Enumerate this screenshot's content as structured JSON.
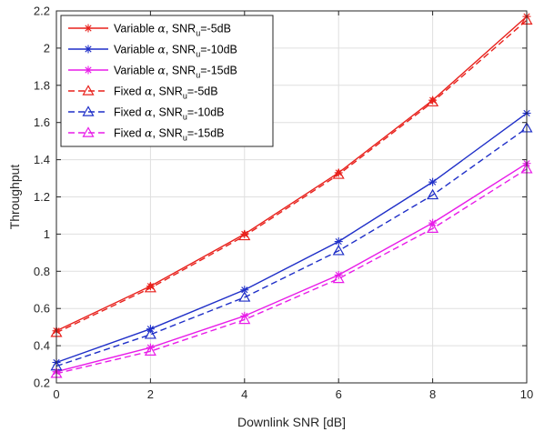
{
  "chart_data": {
    "type": "line",
    "title": "",
    "xlabel": "Downlink SNR [dB]",
    "ylabel": "Throughput",
    "xlim": [
      0,
      10
    ],
    "ylim": [
      0.2,
      2.2
    ],
    "xticks": [
      0,
      2,
      4,
      6,
      8,
      10
    ],
    "yticks": [
      0.2,
      0.4,
      0.6,
      0.8,
      1,
      1.2,
      1.4,
      1.6,
      1.8,
      2,
      2.2
    ],
    "xtick_labels": [
      "0",
      "2",
      "4",
      "6",
      "8",
      "10"
    ],
    "ytick_labels": [
      "0.2",
      "0.4",
      "0.6",
      "0.8",
      "1",
      "1.2",
      "1.4",
      "1.6",
      "1.8",
      "2",
      "2.2"
    ],
    "grid": true,
    "legend_position": "top-left",
    "x": [
      0,
      2,
      4,
      6,
      8,
      10
    ],
    "series": [
      {
        "legend": {
          "prefix": "Variable ",
          "greek": "α",
          "mid": ", SNR",
          "sub": "u",
          "suffix": "=-5dB"
        },
        "color": "#e8211c",
        "dash": "solid",
        "marker": "asterisk",
        "values": [
          0.48,
          0.72,
          1.0,
          1.33,
          1.72,
          2.17
        ]
      },
      {
        "legend": {
          "prefix": "Variable ",
          "greek": "α",
          "mid": ", SNR",
          "sub": "u",
          "suffix": "=-10dB"
        },
        "color": "#1f2fc8",
        "dash": "solid",
        "marker": "asterisk",
        "values": [
          0.31,
          0.49,
          0.7,
          0.96,
          1.28,
          1.65
        ]
      },
      {
        "legend": {
          "prefix": "Variable ",
          "greek": "α",
          "mid": ", SNR",
          "sub": "u",
          "suffix": "=-15dB"
        },
        "color": "#e81ce8",
        "dash": "solid",
        "marker": "asterisk",
        "values": [
          0.26,
          0.39,
          0.56,
          0.78,
          1.06,
          1.38
        ]
      },
      {
        "legend": {
          "prefix": "Fixed ",
          "greek": "α",
          "mid": ", SNR",
          "sub": "u",
          "suffix": "=-5dB"
        },
        "color": "#e8211c",
        "dash": "dashed",
        "marker": "triangle",
        "values": [
          0.47,
          0.71,
          0.99,
          1.32,
          1.71,
          2.15
        ]
      },
      {
        "legend": {
          "prefix": "Fixed ",
          "greek": "α",
          "mid": ", SNR",
          "sub": "u",
          "suffix": "=-10dB"
        },
        "color": "#1f2fc8",
        "dash": "dashed",
        "marker": "triangle",
        "values": [
          0.29,
          0.46,
          0.66,
          0.91,
          1.21,
          1.57
        ]
      },
      {
        "legend": {
          "prefix": "Fixed ",
          "greek": "α",
          "mid": ", SNR",
          "sub": "u",
          "suffix": "=-15dB"
        },
        "color": "#e81ce8",
        "dash": "dashed",
        "marker": "triangle",
        "values": [
          0.25,
          0.37,
          0.54,
          0.76,
          1.03,
          1.35
        ]
      }
    ]
  }
}
